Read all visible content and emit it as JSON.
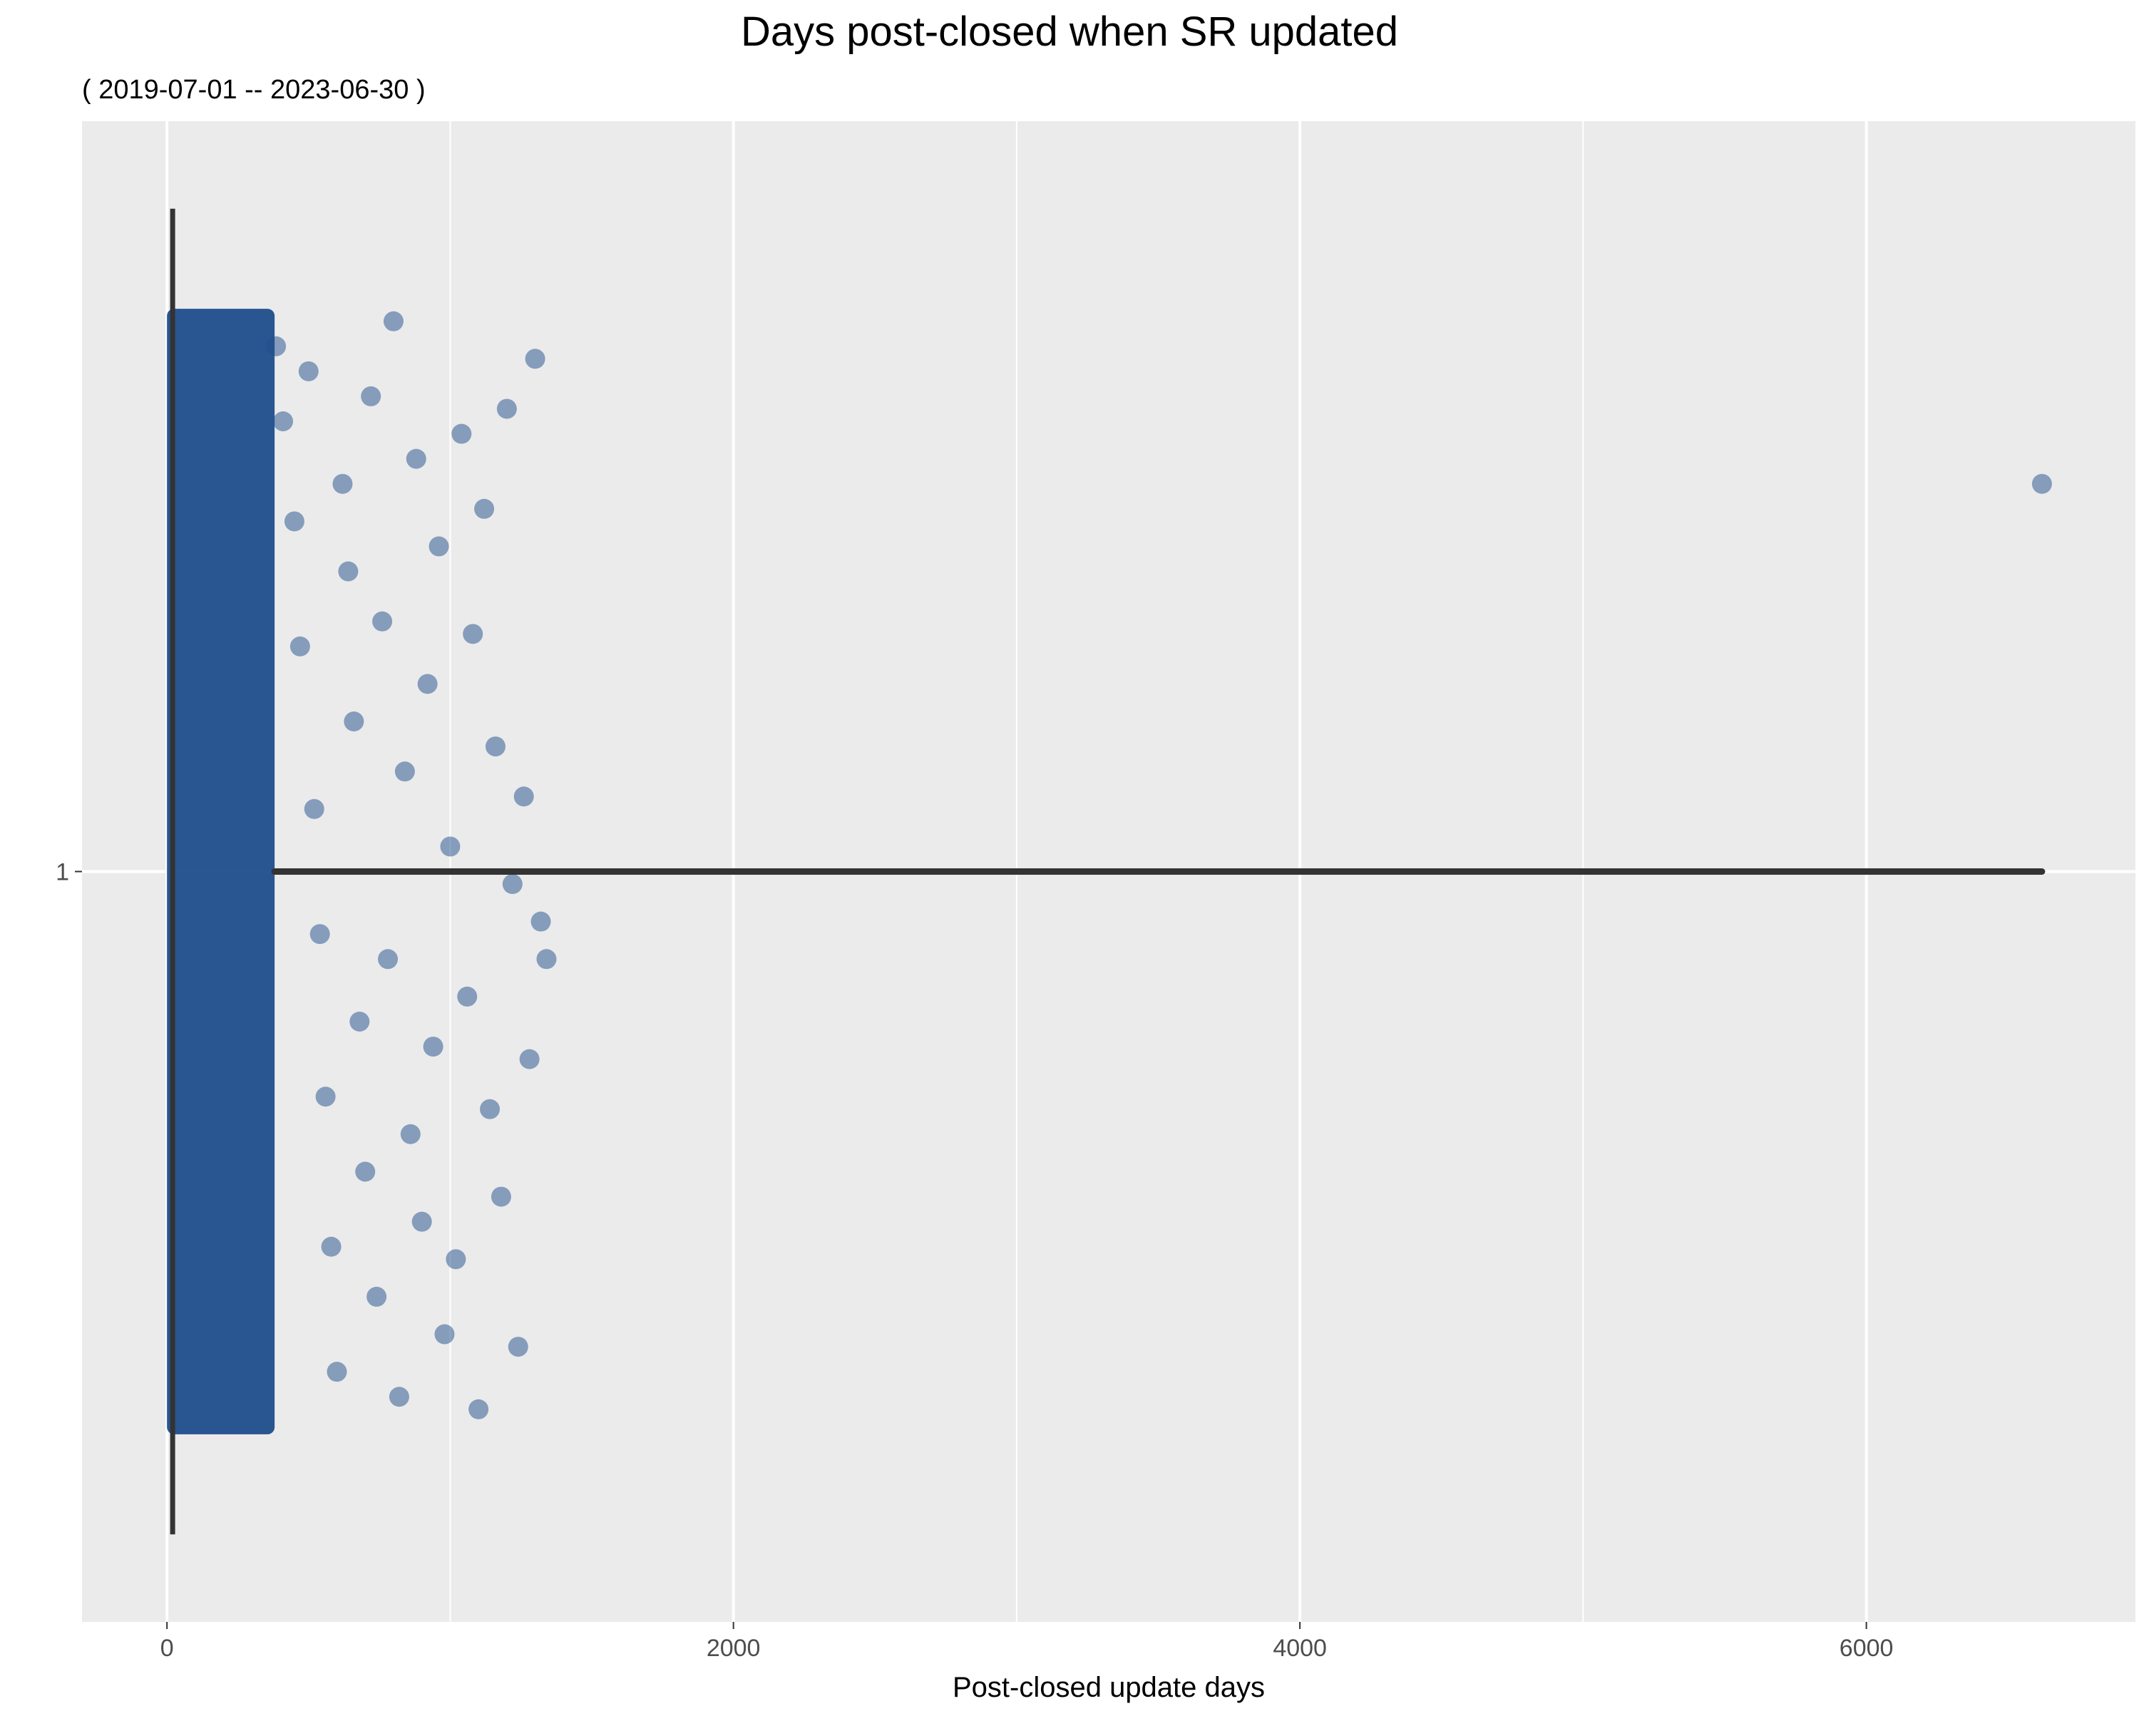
{
  "chart_data": {
    "type": "scatter",
    "title": "Days post-closed when SR updated",
    "subtitle": "( 2019-07-01 -- 2023-06-30 )",
    "xlabel": "Post-closed update days",
    "ylabel": "",
    "xlim": [
      -300,
      6950
    ],
    "ylim": [
      0.4,
      1.6
    ],
    "x_ticks": [
      0,
      2000,
      4000,
      6000
    ],
    "x_tick_labels": [
      "0",
      "2000",
      "4000",
      "6000"
    ],
    "x_minor_gridlines": [
      1000,
      3000,
      5000
    ],
    "y_categories": [
      "1"
    ],
    "grid": true,
    "legend": "none",
    "panel_background": "#ebebeb",
    "gridline_color": "#ffffff",
    "point_color": "#1f4e8c",
    "point_alpha": 0.5,
    "line_color": "#333333",
    "jitter_height": 0.45,
    "dense_band": {
      "x_min": 0,
      "x_max": 380,
      "description": "thousands of overlapping points"
    },
    "points": [
      {
        "x": 385,
        "y": 1.42
      },
      {
        "x": 410,
        "y": 1.36
      },
      {
        "x": 450,
        "y": 1.28
      },
      {
        "x": 470,
        "y": 1.18
      },
      {
        "x": 500,
        "y": 1.4
      },
      {
        "x": 520,
        "y": 1.05
      },
      {
        "x": 540,
        "y": 0.95
      },
      {
        "x": 560,
        "y": 0.82
      },
      {
        "x": 580,
        "y": 0.7
      },
      {
        "x": 600,
        "y": 0.6
      },
      {
        "x": 620,
        "y": 1.31
      },
      {
        "x": 640,
        "y": 1.24
      },
      {
        "x": 660,
        "y": 1.12
      },
      {
        "x": 680,
        "y": 0.88
      },
      {
        "x": 700,
        "y": 0.76
      },
      {
        "x": 720,
        "y": 1.38
      },
      {
        "x": 740,
        "y": 0.66
      },
      {
        "x": 760,
        "y": 1.2
      },
      {
        "x": 780,
        "y": 0.93
      },
      {
        "x": 800,
        "y": 1.44
      },
      {
        "x": 820,
        "y": 0.58
      },
      {
        "x": 840,
        "y": 1.08
      },
      {
        "x": 860,
        "y": 0.79
      },
      {
        "x": 880,
        "y": 1.33
      },
      {
        "x": 900,
        "y": 0.72
      },
      {
        "x": 920,
        "y": 1.15
      },
      {
        "x": 940,
        "y": 0.86
      },
      {
        "x": 960,
        "y": 1.26
      },
      {
        "x": 980,
        "y": 0.63
      },
      {
        "x": 1000,
        "y": 1.02
      },
      {
        "x": 1020,
        "y": 0.69
      },
      {
        "x": 1040,
        "y": 1.35
      },
      {
        "x": 1060,
        "y": 0.9
      },
      {
        "x": 1080,
        "y": 1.19
      },
      {
        "x": 1100,
        "y": 0.57
      },
      {
        "x": 1120,
        "y": 1.29
      },
      {
        "x": 1140,
        "y": 0.81
      },
      {
        "x": 1160,
        "y": 1.1
      },
      {
        "x": 1180,
        "y": 0.74
      },
      {
        "x": 1200,
        "y": 1.37
      },
      {
        "x": 1220,
        "y": 0.99
      },
      {
        "x": 1240,
        "y": 0.62
      },
      {
        "x": 1260,
        "y": 1.06
      },
      {
        "x": 1280,
        "y": 0.85
      },
      {
        "x": 1300,
        "y": 1.41
      },
      {
        "x": 1320,
        "y": 0.96
      },
      {
        "x": 1340,
        "y": 0.93
      },
      {
        "x": 6620,
        "y": 1.31
      }
    ]
  }
}
